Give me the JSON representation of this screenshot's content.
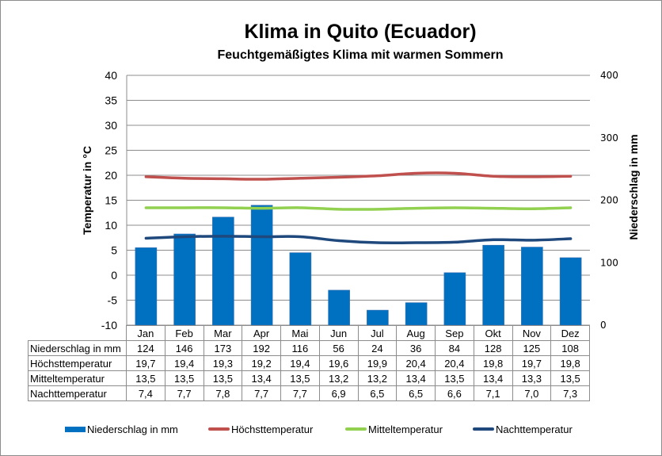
{
  "title": "Klima in Quito (Ecuador)",
  "subtitle": "Feuchtgemäßigtes Klima mit warmen Sommern",
  "axes": {
    "left_label": "Temperatur in °C",
    "right_label": "Niederschlag in mm",
    "left_ticks": [
      "40",
      "35",
      "30",
      "25",
      "20",
      "15",
      "10",
      "5",
      "0",
      "-5",
      "-10"
    ],
    "right_ticks": [
      "400",
      "300",
      "200",
      "100",
      "0"
    ]
  },
  "table": {
    "months": [
      "Jan",
      "Feb",
      "Mar",
      "Apr",
      "Mai",
      "Jun",
      "Jul",
      "Aug",
      "Sep",
      "Okt",
      "Nov",
      "Dez"
    ],
    "rows": [
      {
        "label": "Niederschlag in mm",
        "values": [
          "124",
          "146",
          "173",
          "192",
          "116",
          "56",
          "24",
          "36",
          "84",
          "128",
          "125",
          "108"
        ]
      },
      {
        "label": "Höchsttemperatur",
        "values": [
          "19,7",
          "19,4",
          "19,3",
          "19,2",
          "19,4",
          "19,6",
          "19,9",
          "20,4",
          "20,4",
          "19,8",
          "19,7",
          "19,8"
        ]
      },
      {
        "label": "Mitteltemperatur",
        "values": [
          "13,5",
          "13,5",
          "13,5",
          "13,4",
          "13,5",
          "13,2",
          "13,2",
          "13,4",
          "13,5",
          "13,4",
          "13,3",
          "13,5"
        ]
      },
      {
        "label": "Nachttemperatur",
        "values": [
          "7,4",
          "7,7",
          "7,8",
          "7,7",
          "7,7",
          "6,9",
          "6,5",
          "6,5",
          "6,6",
          "7,1",
          "7,0",
          "7,3"
        ]
      }
    ]
  },
  "legend": [
    {
      "label": "Niederschlag in mm",
      "color": "#0070C0",
      "kind": "bar"
    },
    {
      "label": "Höchsttemperatur",
      "color": "#C0504D",
      "kind": "line"
    },
    {
      "label": "Mitteltemperatur",
      "color": "#92D050",
      "kind": "line"
    },
    {
      "label": "Nachttemperatur",
      "color": "#1F497D",
      "kind": "line"
    }
  ],
  "chart_data": {
    "type": "bar",
    "title": "Klima in Quito (Ecuador)",
    "subtitle": "Feuchtgemäßigtes Klima mit warmen Sommern",
    "categories": [
      "Jan",
      "Feb",
      "Mar",
      "Apr",
      "Mai",
      "Jun",
      "Jul",
      "Aug",
      "Sep",
      "Okt",
      "Nov",
      "Dez"
    ],
    "series": [
      {
        "name": "Niederschlag in mm",
        "type": "bar",
        "axis": "right",
        "color": "#0070C0",
        "values": [
          124,
          146,
          173,
          192,
          116,
          56,
          24,
          36,
          84,
          128,
          125,
          108
        ]
      },
      {
        "name": "Höchsttemperatur",
        "type": "line",
        "axis": "left",
        "color": "#C0504D",
        "values": [
          19.7,
          19.4,
          19.3,
          19.2,
          19.4,
          19.6,
          19.9,
          20.4,
          20.4,
          19.8,
          19.7,
          19.8
        ]
      },
      {
        "name": "Mitteltemperatur",
        "type": "line",
        "axis": "left",
        "color": "#92D050",
        "values": [
          13.5,
          13.5,
          13.5,
          13.4,
          13.5,
          13.2,
          13.2,
          13.4,
          13.5,
          13.4,
          13.3,
          13.5
        ]
      },
      {
        "name": "Nachttemperatur",
        "type": "line",
        "axis": "left",
        "color": "#1F497D",
        "values": [
          7.4,
          7.7,
          7.8,
          7.7,
          7.7,
          6.9,
          6.5,
          6.5,
          6.6,
          7.1,
          7.0,
          7.3
        ]
      }
    ],
    "xlabel": "",
    "ylabel": "Temperatur in °C",
    "ylabel_right": "Niederschlag in mm",
    "ylim": [
      -10,
      40
    ],
    "ylim_right": [
      0,
      400
    ],
    "grid": true,
    "legend_position": "bottom"
  }
}
